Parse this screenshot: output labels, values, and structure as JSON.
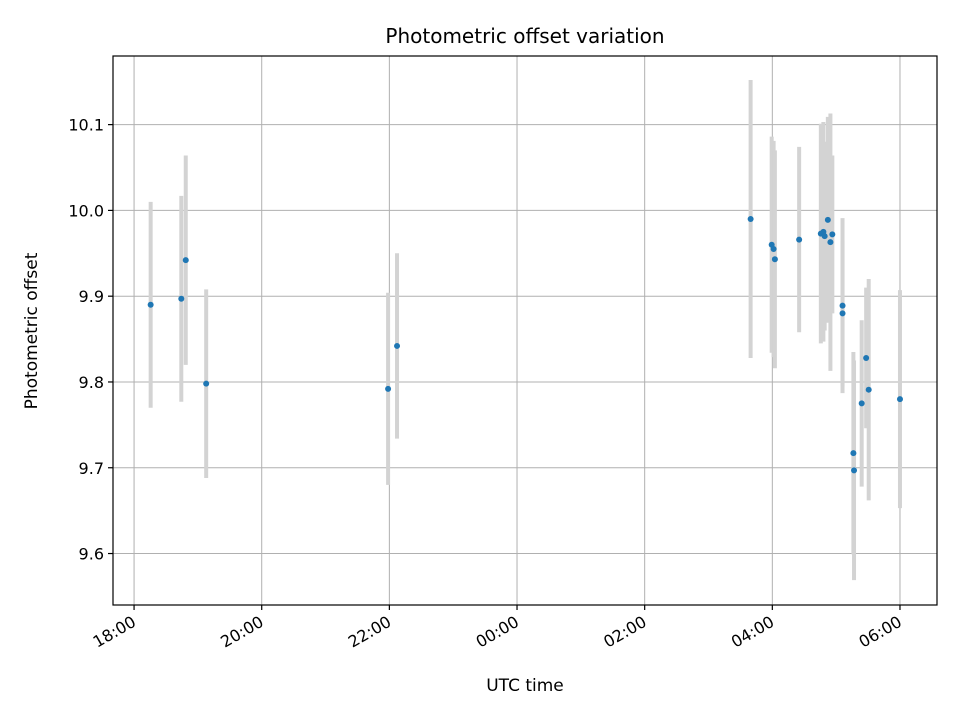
{
  "chart_data": {
    "type": "scatter",
    "title": "Photometric offset variation",
    "xlabel": "UTC time",
    "ylabel": "Photometric offset",
    "x_tick_labels": [
      "18:00",
      "20:00",
      "22:00",
      "00:00",
      "02:00",
      "04:00",
      "06:00"
    ],
    "y_tick_labels": [
      "9.6",
      "9.7",
      "9.8",
      "9.9",
      "10.0",
      "10.1"
    ],
    "y_ticks": [
      9.6,
      9.7,
      9.8,
      9.9,
      10.0,
      10.1
    ],
    "x_ticks_hours_since_1800": [
      0,
      2,
      4,
      6,
      8,
      10,
      12
    ],
    "x_axis_range_hours_since_1800": [
      -0.33,
      12.58
    ],
    "ylim": [
      9.54,
      10.18
    ],
    "grid": true,
    "colors": {
      "marker": "#1f77b4",
      "errorbar": "#d3d3d3",
      "grid": "#b0b0b0"
    },
    "x_unit_note": "x values in hours after 18:00 UTC",
    "points": [
      {
        "x": 0.26,
        "y": 9.89,
        "err": 0.12
      },
      {
        "x": 0.74,
        "y": 9.897,
        "err": 0.12
      },
      {
        "x": 0.81,
        "y": 9.942,
        "err": 0.122
      },
      {
        "x": 1.13,
        "y": 9.798,
        "err": 0.11
      },
      {
        "x": 3.98,
        "y": 9.792,
        "err": 0.112
      },
      {
        "x": 4.12,
        "y": 9.842,
        "err": 0.108
      },
      {
        "x": 9.66,
        "y": 9.99,
        "err": 0.162
      },
      {
        "x": 9.99,
        "y": 9.96,
        "err": 0.126
      },
      {
        "x": 10.02,
        "y": 9.955,
        "err": 0.126
      },
      {
        "x": 10.04,
        "y": 9.943,
        "err": 0.127
      },
      {
        "x": 10.42,
        "y": 9.966,
        "err": 0.108
      },
      {
        "x": 10.76,
        "y": 9.973,
        "err": 0.128
      },
      {
        "x": 10.8,
        "y": 9.975,
        "err": 0.128
      },
      {
        "x": 10.82,
        "y": 9.97,
        "err": 0.11
      },
      {
        "x": 10.87,
        "y": 9.989,
        "err": 0.12
      },
      {
        "x": 10.91,
        "y": 9.963,
        "err": 0.15
      },
      {
        "x": 10.94,
        "y": 9.972,
        "err": 0.092
      },
      {
        "x": 11.1,
        "y": 9.889,
        "err": 0.102
      },
      {
        "x": 11.1,
        "y": 9.88,
        "err": 0.085
      },
      {
        "x": 11.27,
        "y": 9.717,
        "err": 0.118
      },
      {
        "x": 11.28,
        "y": 9.697,
        "err": 0.128
      },
      {
        "x": 11.4,
        "y": 9.775,
        "err": 0.097
      },
      {
        "x": 11.47,
        "y": 9.828,
        "err": 0.082
      },
      {
        "x": 11.51,
        "y": 9.791,
        "err": 0.129
      },
      {
        "x": 12.0,
        "y": 9.78,
        "err": 0.127
      }
    ]
  }
}
